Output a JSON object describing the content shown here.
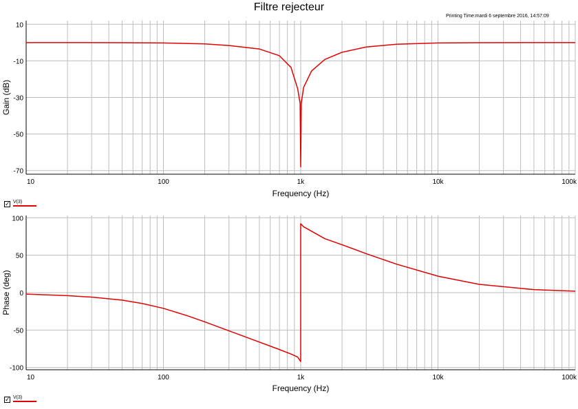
{
  "title": "Filtre rejecteur",
  "printing_time": "Printing Time:mardi 6 septembre 2016, 14:57:09",
  "colors": {
    "trace": "#e00000",
    "grid": "#bdbdbd",
    "axis": "#000000"
  },
  "legend": {
    "checkbox_icon": "check-icon",
    "trace_name": "V(3)"
  },
  "chart_data": [
    {
      "type": "line",
      "title": "Filtre rejecteur",
      "xlabel": "Frequency (Hz)",
      "ylabel": "Gain (dB)",
      "xscale": "log",
      "xlim": [
        10,
        100000
      ],
      "ylim": [
        -72,
        12
      ],
      "xticks": [
        10,
        100,
        1000,
        10000,
        100000
      ],
      "xtick_labels": [
        "10",
        "100",
        "1k",
        "10k",
        "100k"
      ],
      "yticks": [
        10,
        -10,
        -30,
        -50,
        -70
      ],
      "ytick_labels": [
        "10",
        "-10",
        "-30",
        "-50",
        "-70"
      ],
      "grid": true,
      "series": [
        {
          "name": "V(3)",
          "x": [
            10,
            20,
            50,
            100,
            200,
            300,
            500,
            700,
            850,
            950,
            990,
            1000,
            1010,
            1050,
            1200,
            1500,
            2000,
            3000,
            5000,
            10000,
            20000,
            50000,
            100000
          ],
          "y": [
            0,
            -0.01,
            -0.03,
            -0.2,
            -0.7,
            -1.6,
            -3.5,
            -7.2,
            -13.6,
            -25.2,
            -33.2,
            -68,
            -33.2,
            -24.5,
            -15.5,
            -9.2,
            -5.3,
            -2.4,
            -0.9,
            -0.2,
            -0.05,
            -0.01,
            0
          ]
        }
      ]
    },
    {
      "type": "line",
      "xlabel": "Frequency (Hz)",
      "ylabel": "Phase (deg)",
      "xscale": "log",
      "xlim": [
        10,
        100000
      ],
      "ylim": [
        -103,
        103
      ],
      "xticks": [
        10,
        100,
        1000,
        10000,
        100000
      ],
      "xtick_labels": [
        "10",
        "100",
        "1k",
        "10k",
        "100k"
      ],
      "yticks": [
        100,
        50,
        0,
        -50,
        -100
      ],
      "ytick_labels": [
        "100",
        "50",
        "0",
        "-50",
        "-100"
      ],
      "grid": true,
      "series": [
        {
          "name": "V(3)",
          "x": [
            10,
            20,
            30,
            50,
            70,
            100,
            150,
            200,
            300,
            500,
            700,
            850,
            950,
            1000,
            1000,
            1050,
            1200,
            1500,
            2000,
            3000,
            5000,
            10000,
            20000,
            50000,
            100000
          ],
          "y": [
            -2,
            -4,
            -6,
            -10,
            -14.5,
            -21,
            -31,
            -39,
            -51,
            -66,
            -76,
            -82,
            -86,
            -92,
            92,
            88,
            82,
            72,
            64,
            52,
            38,
            22,
            11,
            4,
            2
          ]
        }
      ]
    }
  ]
}
